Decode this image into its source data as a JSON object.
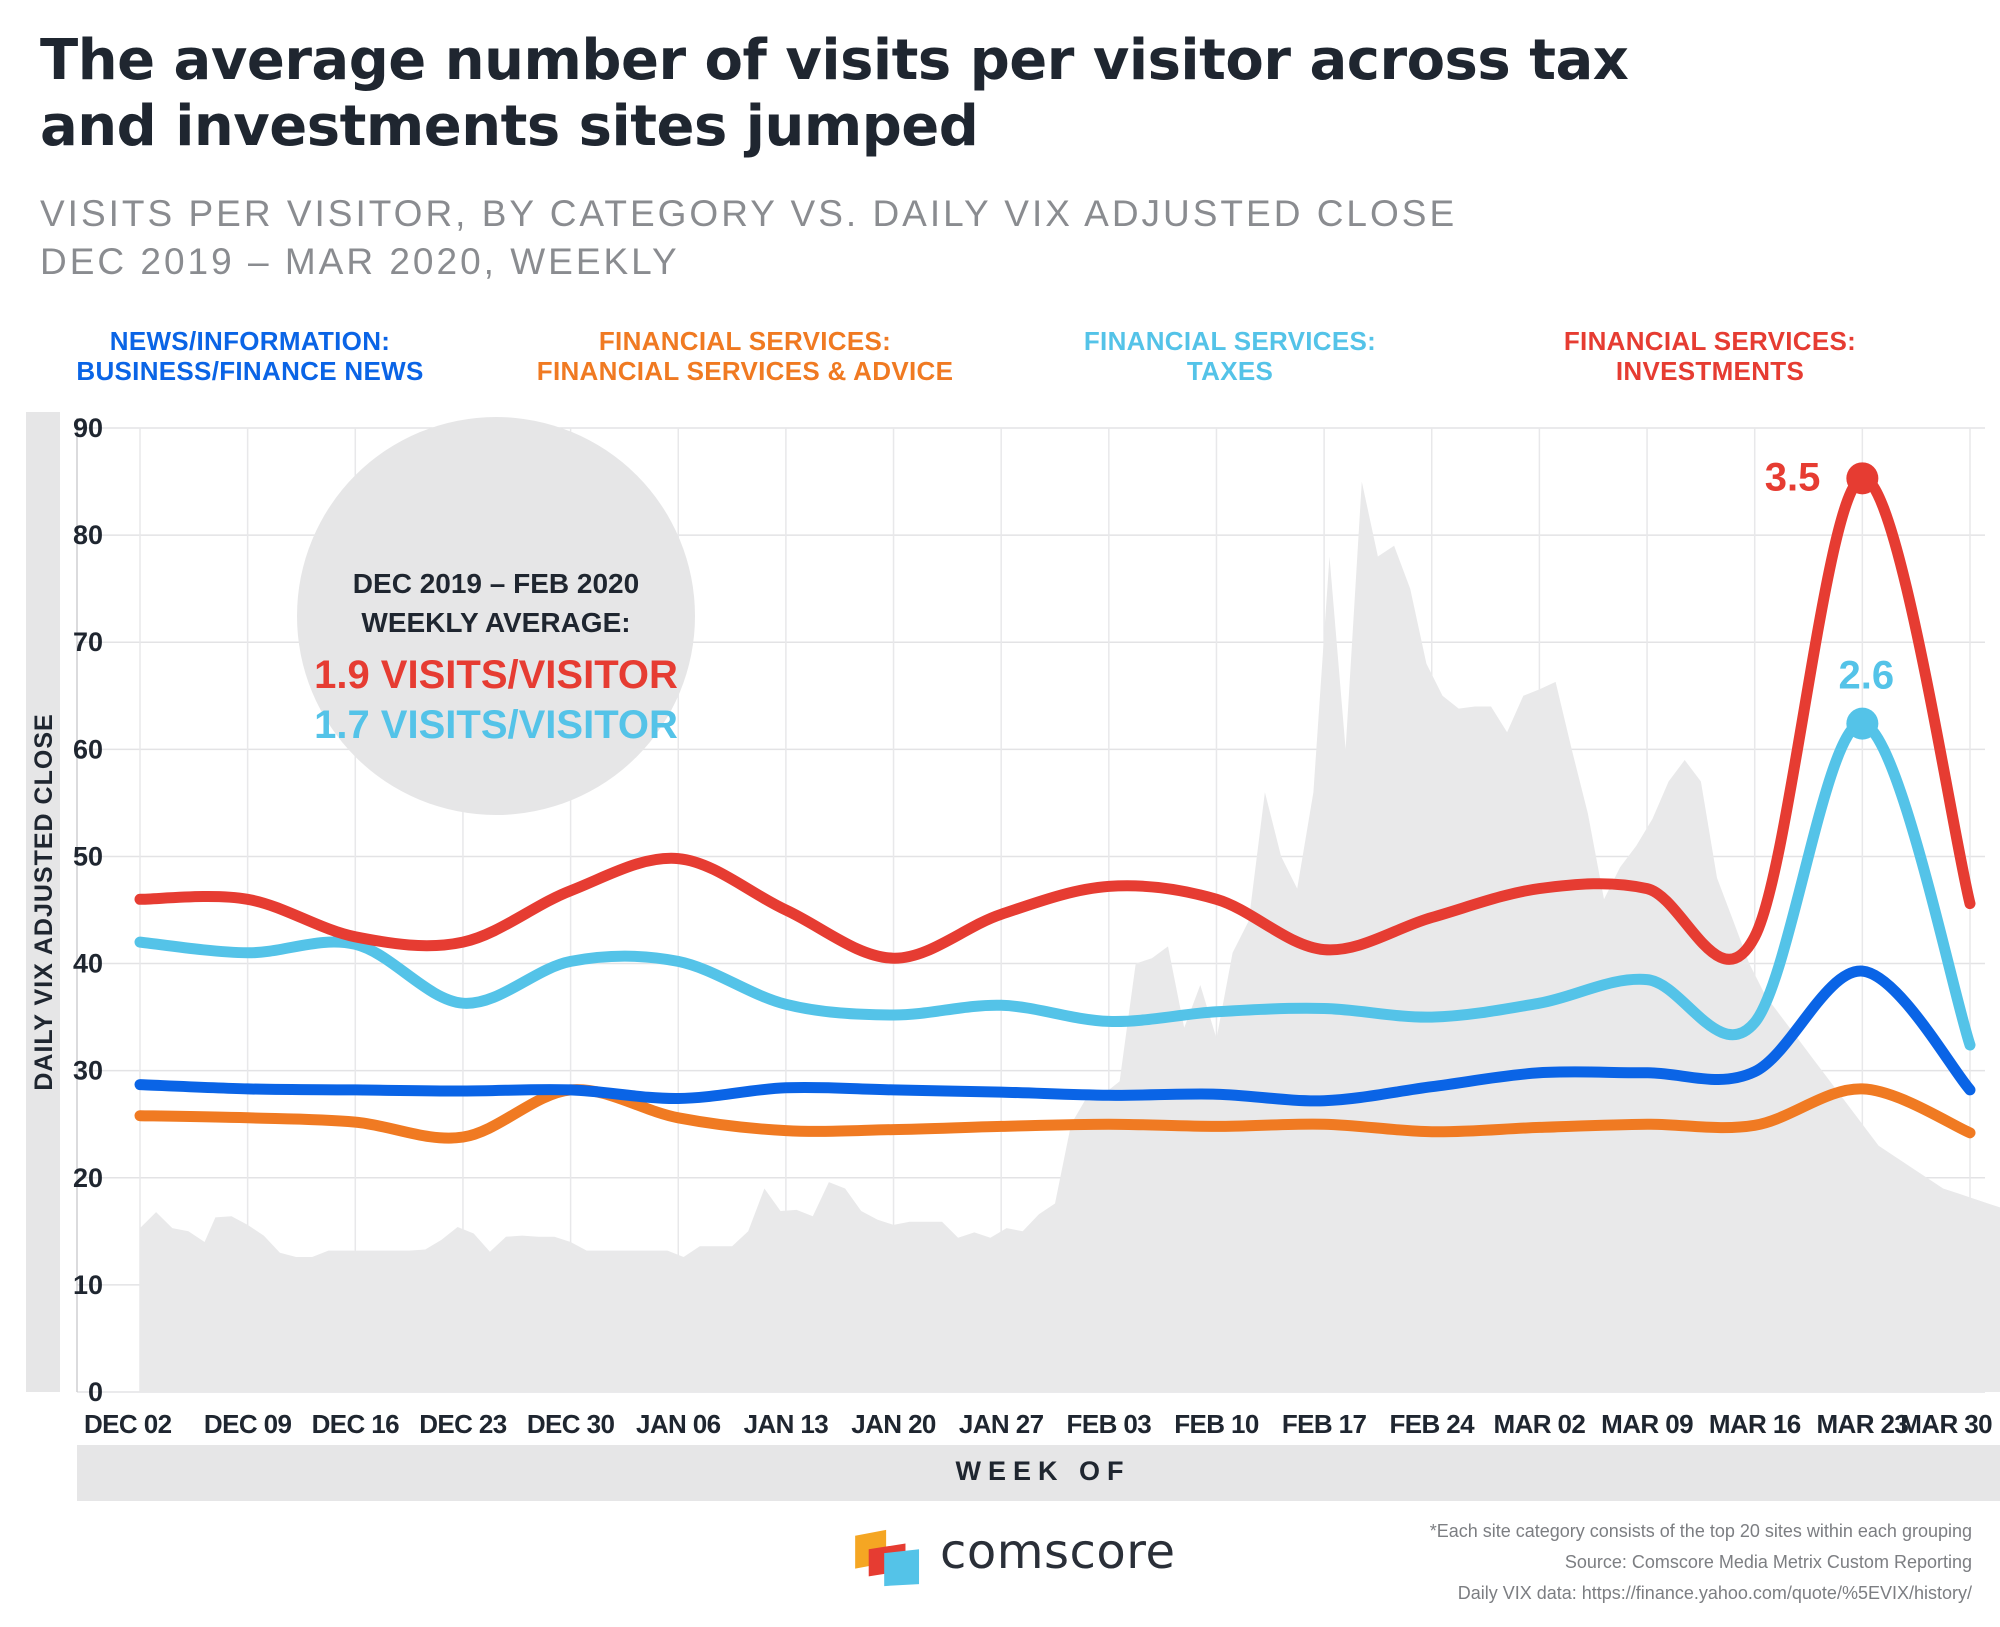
{
  "header": {
    "title": "The average number of visits per visitor across tax and investments sites jumped",
    "subtitle_line1": "VISITS PER VISITOR, BY CATEGORY VS. DAILY VIX ADJUSTED CLOSE",
    "subtitle_line2": "DEC 2019 – MAR 2020, WEEKLY"
  },
  "legend": [
    {
      "line1": "NEWS/INFORMATION:",
      "line2": "BUSINESS/FINANCE NEWS",
      "color": "#0a64e6"
    },
    {
      "line1": "FINANCIAL SERVICES:",
      "line2": "FINANCIAL SERVICES & ADVICE",
      "color": "#f07a22"
    },
    {
      "line1": "FINANCIAL SERVICES:",
      "line2": "TAXES",
      "color": "#54c3e8"
    },
    {
      "line1": "FINANCIAL SERVICES:",
      "line2": "INVESTMENTS",
      "color": "#e63c32"
    }
  ],
  "callout": {
    "line1": "DEC 2019 – FEB 2020",
    "line2": "WEEKLY AVERAGE:",
    "red_text": "1.9 VISITS/VISITOR",
    "blue_text": "1.7 VISITS/VISITOR"
  },
  "chart_data": {
    "type": "line",
    "ylabel": "DAILY VIX ADJUSTED CLOSE",
    "xlabel": "WEEK OF",
    "ylim": [
      0,
      90
    ],
    "yticks": [
      0,
      10,
      20,
      30,
      40,
      50,
      60,
      70,
      80,
      90
    ],
    "categories": [
      "DEC 02",
      "DEC 09",
      "DEC 16",
      "DEC 23",
      "DEC 30",
      "JAN 06",
      "JAN 13",
      "JAN 20",
      "JAN 27",
      "FEB 03",
      "FEB 10",
      "FEB 17",
      "FEB 24",
      "MAR 02",
      "MAR 09",
      "MAR 16",
      "MAR 23",
      "MAR 30"
    ],
    "grid": true,
    "series": [
      {
        "name": "NEWS/INFORMATION: BUSINESS/FINANCE NEWS",
        "color": "#0a64e6",
        "values": [
          28.7,
          28.3,
          28.2,
          28.1,
          28.2,
          27.4,
          28.4,
          28.2,
          28.0,
          27.7,
          27.8,
          27.2,
          28.5,
          29.8,
          29.8,
          29.9,
          39.3,
          28.2
        ]
      },
      {
        "name": "FINANCIAL SERVICES: FINANCIAL SERVICES & ADVICE",
        "color": "#f07a22",
        "values": [
          25.8,
          25.6,
          25.2,
          23.8,
          28.2,
          25.6,
          24.4,
          24.5,
          24.8,
          25.0,
          24.8,
          25.0,
          24.3,
          24.7,
          25.0,
          24.9,
          28.3,
          24.2
        ]
      },
      {
        "name": "FINANCIAL SERVICES: TAXES",
        "color": "#54c3e8",
        "values": [
          42.0,
          41.0,
          41.8,
          36.3,
          40.2,
          40.2,
          36.2,
          35.2,
          36.1,
          34.6,
          35.5,
          35.8,
          35.0,
          36.3,
          38.5,
          34.5,
          62.4,
          32.4
        ]
      },
      {
        "name": "FINANCIAL SERVICES: INVESTMENTS",
        "color": "#e63c32",
        "values": [
          46.0,
          46.0,
          42.5,
          42.0,
          46.8,
          49.8,
          45.0,
          40.5,
          44.6,
          47.2,
          46.0,
          41.3,
          44.3,
          47.0,
          47.0,
          42.5,
          85.3,
          45.6
        ]
      }
    ],
    "vix_area": {
      "color": "#e9e9ea",
      "x": [
        0.0,
        0.15,
        0.3,
        0.45,
        0.6,
        0.7,
        0.85,
        1.0,
        1.15,
        1.3,
        1.45,
        1.6,
        1.75,
        1.9,
        2.05,
        2.2,
        2.35,
        2.5,
        2.65,
        2.8,
        2.95,
        3.1,
        3.25,
        3.4,
        3.55,
        3.7,
        3.85,
        4.0,
        4.15,
        4.3,
        4.45,
        4.6,
        4.75,
        4.9,
        5.05,
        5.2,
        5.35,
        5.5,
        5.65,
        5.8,
        5.95,
        6.1,
        6.25,
        6.4,
        6.55,
        6.7,
        6.85,
        7.0,
        7.15,
        7.3,
        7.45,
        7.6,
        7.75,
        7.9,
        8.05,
        8.2,
        8.35,
        8.5,
        8.65,
        8.8,
        8.95,
        9.1,
        9.25,
        9.4,
        9.55,
        9.7,
        9.85,
        10.0,
        10.15,
        10.3,
        10.45,
        10.6,
        10.75,
        10.9,
        11.05,
        11.2,
        11.35,
        11.5,
        11.65,
        11.8,
        11.95,
        12.1,
        12.25,
        12.4,
        12.55,
        12.7,
        12.85,
        13.0,
        13.15,
        13.3,
        13.45,
        13.6,
        13.75,
        13.9,
        14.05,
        14.2,
        14.35,
        14.5,
        14.65,
        14.8,
        14.95,
        15.1,
        15.25,
        15.4,
        15.55,
        15.7,
        15.85,
        16.0,
        16.15,
        16.3,
        16.45,
        16.6,
        16.75,
        16.9,
        17.05,
        17.2,
        17.35
      ],
      "values": [
        15.3,
        16.8,
        15.3,
        15.0,
        14.0,
        16.3,
        16.4,
        15.6,
        14.6,
        13.0,
        12.6,
        12.6,
        13.2,
        13.2,
        13.2,
        13.2,
        13.2,
        13.2,
        13.3,
        14.2,
        15.4,
        14.8,
        13.1,
        14.5,
        14.6,
        14.5,
        14.5,
        14.0,
        13.2,
        13.2,
        13.2,
        13.2,
        13.2,
        13.2,
        12.6,
        13.6,
        13.6,
        13.6,
        15.0,
        19.0,
        16.9,
        17.0,
        16.4,
        19.6,
        19.0,
        16.9,
        16.1,
        15.6,
        15.9,
        15.9,
        15.9,
        14.4,
        14.9,
        14.4,
        15.3,
        15.0,
        16.6,
        17.6,
        25.0,
        27.6,
        27.8,
        29.0,
        40.0,
        40.5,
        41.6,
        34.0,
        38.0,
        33.0,
        41.0,
        44.0,
        56.0,
        50.0,
        47.0,
        56.0,
        78.0,
        60.0,
        85.0,
        78.0,
        79.0,
        75.0,
        68.0,
        65.0,
        63.8,
        64.0,
        64.0,
        61.6,
        65.0,
        65.6,
        66.3,
        60.0,
        54.0,
        46.0,
        49.0,
        51.0,
        53.5,
        57.0,
        59.0,
        57.0,
        48.0,
        44.0,
        40.0,
        37.0,
        35.0,
        33.0,
        31.0,
        29.0,
        27.0,
        25.0,
        23.0,
        22.0,
        21.0,
        20.0,
        19.0,
        18.5,
        18.0,
        17.5,
        17.0
      ]
    },
    "annotations": [
      {
        "series": "FINANCIAL SERVICES: INVESTMENTS",
        "category": "MAR 23",
        "text": "3.5"
      },
      {
        "series": "FINANCIAL SERVICES: TAXES",
        "category": "MAR 23",
        "text": "2.6"
      }
    ]
  },
  "footer": {
    "note1": "*Each site category consists of the top 20 sites within each grouping",
    "note2": "Source: Comscore Media Metrix Custom Reporting",
    "note3": "Daily VIX data: https://finance.yahoo.com/quote/%5EVIX/history/",
    "logo_text": "comscore",
    "logo_colors": [
      "#f5a623",
      "#e63c32",
      "#54c3e8"
    ]
  }
}
